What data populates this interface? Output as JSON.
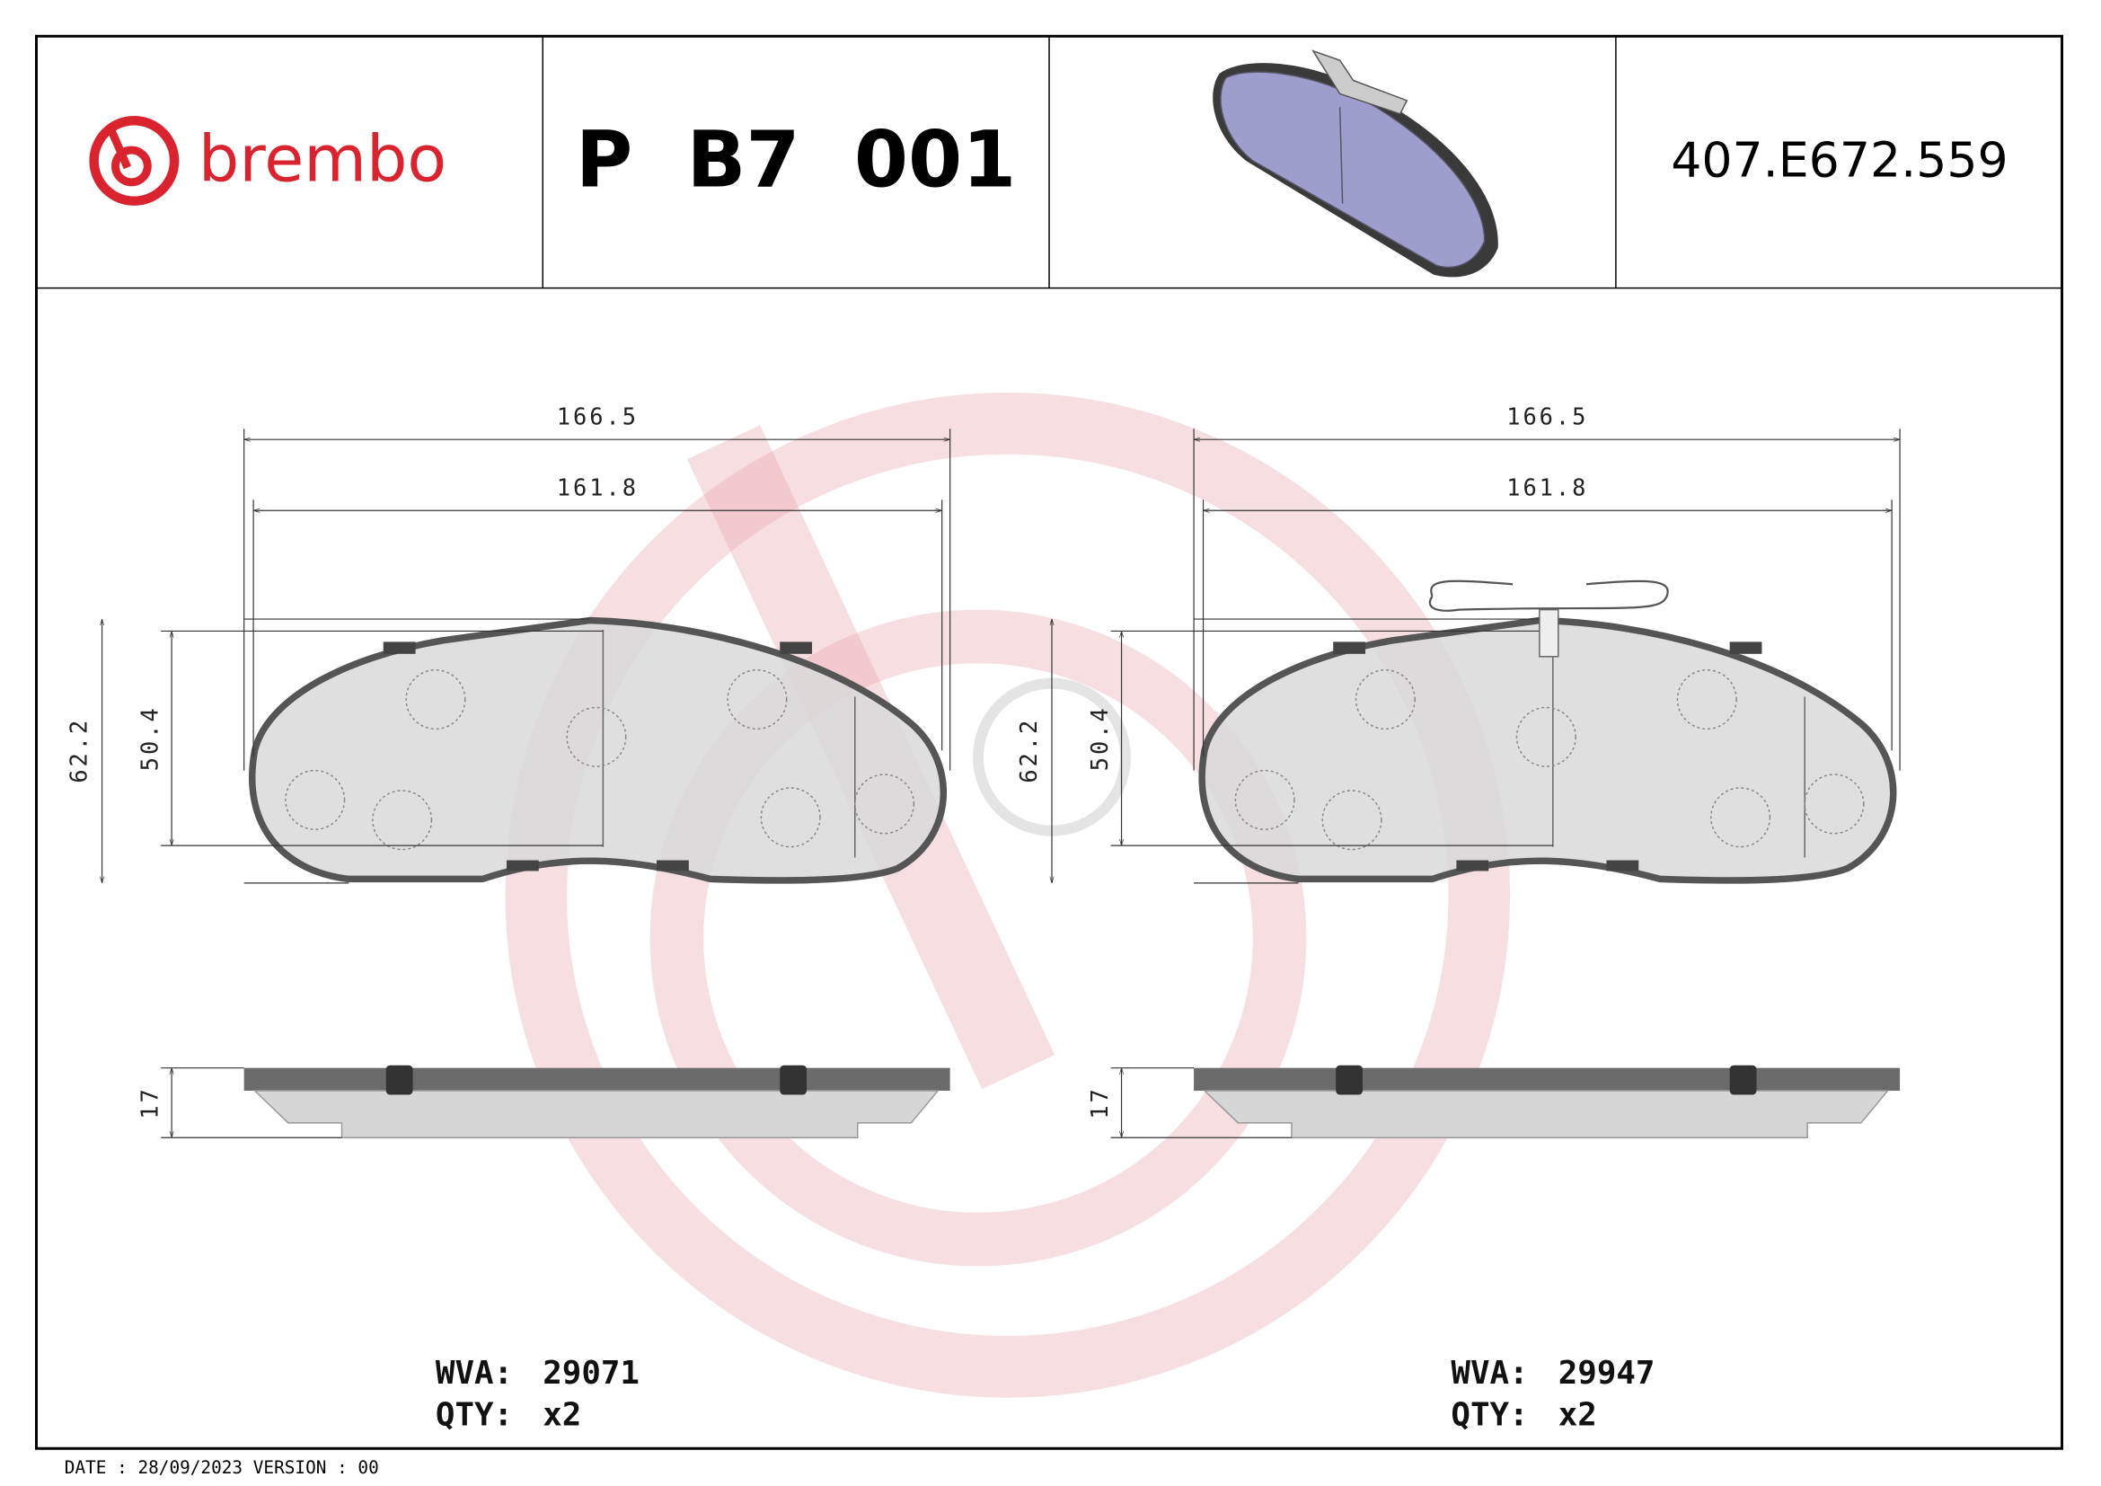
{
  "header": {
    "brand": "brembo",
    "part_number": "P  B7  001",
    "code": "407.E672.559"
  },
  "drawings": [
    {
      "dimensions": {
        "width_outer": "166.5",
        "width_inner": "161.8",
        "height_outer": "62.2",
        "height_inner": "50.4",
        "thickness": "17"
      },
      "wva_label": "WVA:",
      "wva": "29071",
      "qty_label": "QTY:",
      "qty": "x2"
    },
    {
      "dimensions": {
        "width_outer": "166.5",
        "width_inner": "161.8",
        "height_outer": "62.2",
        "height_inner": "50.4",
        "thickness": "17"
      },
      "wva_label": "WVA:",
      "wva": "29947",
      "qty_label": "QTY:",
      "qty": "x2"
    }
  ],
  "footer": "DATE : 28/09/2023 VERSION : 00"
}
